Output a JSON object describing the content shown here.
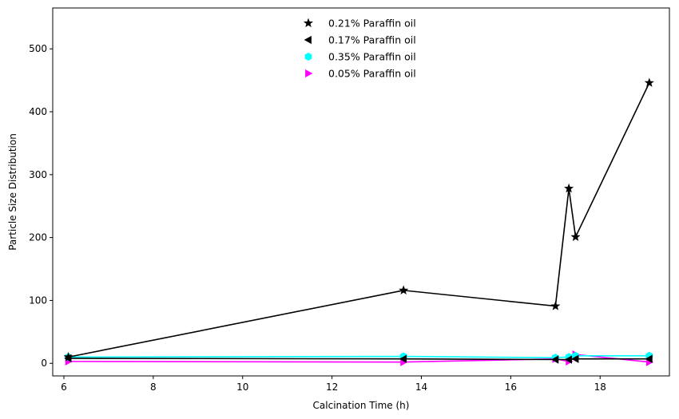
{
  "chart_data": {
    "type": "line",
    "title": "",
    "xlabel": "Calcination Time (h)",
    "ylabel": "Particle Size Distribution",
    "xlim": [
      5.75,
      19.55
    ],
    "ylim": [
      -20,
      565
    ],
    "xticks": [
      6,
      8,
      10,
      12,
      14,
      16,
      18
    ],
    "yticks": [
      0,
      100,
      200,
      300,
      400,
      500
    ],
    "grid": false,
    "legend_position": "top-center",
    "series": [
      {
        "name": "0.21% Paraffin oil",
        "marker": "star",
        "color": "#000000",
        "points": [
          [
            6.1,
            10
          ],
          [
            13.6,
            116
          ],
          [
            17.0,
            91
          ],
          [
            17.3,
            278
          ],
          [
            17.45,
            201
          ],
          [
            19.1,
            446
          ]
        ]
      },
      {
        "name": "0.17% Paraffin oil",
        "marker": "triangle-left",
        "color": "#000000",
        "points": [
          [
            6.1,
            8
          ],
          [
            13.6,
            7
          ],
          [
            17.0,
            6
          ],
          [
            17.3,
            6
          ],
          [
            17.45,
            7
          ],
          [
            19.1,
            7
          ]
        ]
      },
      {
        "name": "0.35% Paraffin oil",
        "marker": "hexagon",
        "color": "#00ffff",
        "points": [
          [
            6.1,
            10
          ],
          [
            13.6,
            11
          ],
          [
            17.0,
            9
          ],
          [
            17.3,
            10
          ],
          [
            17.45,
            12
          ],
          [
            19.1,
            12
          ]
        ]
      },
      {
        "name": "0.05% Paraffin oil",
        "marker": "triangle-right",
        "color": "#ff00ff",
        "points": [
          [
            6.1,
            3
          ],
          [
            13.6,
            2
          ],
          [
            17.0,
            7
          ],
          [
            17.3,
            3
          ],
          [
            17.45,
            14
          ],
          [
            19.1,
            2
          ]
        ]
      }
    ]
  }
}
